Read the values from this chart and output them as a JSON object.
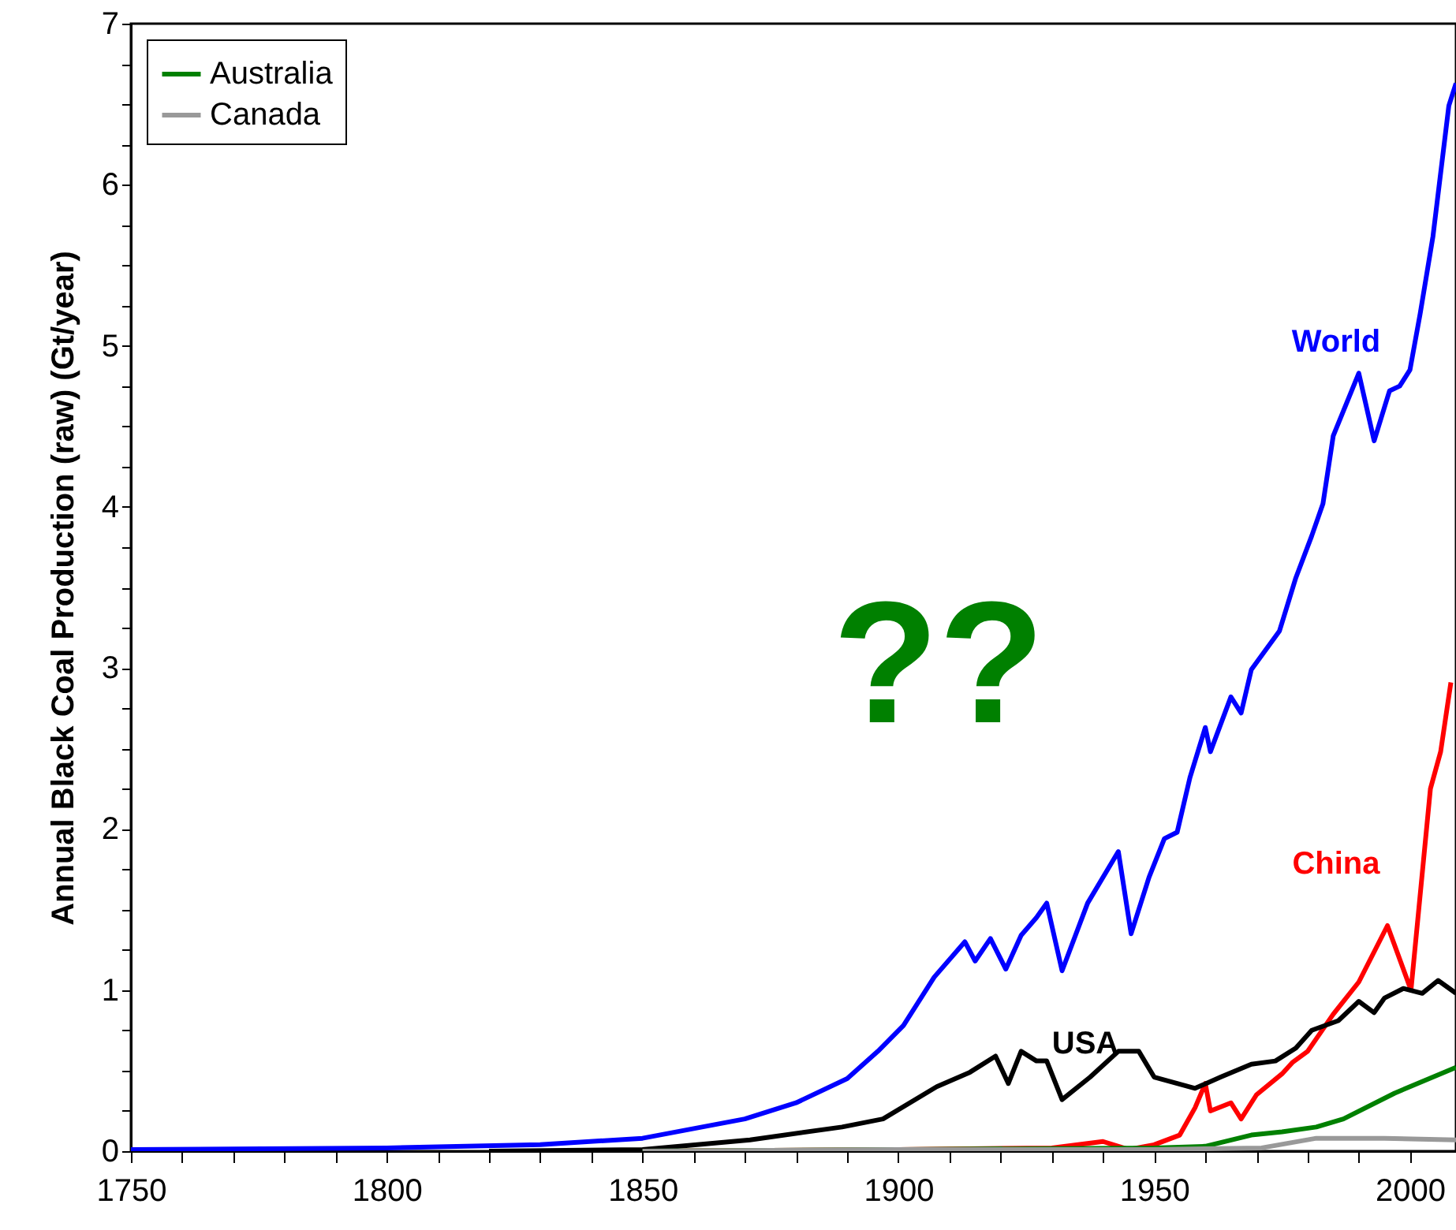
{
  "chart_data": {
    "type": "line",
    "ylabel": "Annual Black Coal Production (raw) (Gt/year)",
    "xlim": [
      1750,
      2009
    ],
    "ylim": [
      0,
      7
    ],
    "xticks": [
      1750,
      {
        "value": 1760,
        "label": null
      },
      {
        "value": 1770,
        "label": null
      },
      {
        "value": 1780,
        "label": null
      },
      {
        "value": 1790,
        "label": null
      },
      1800,
      {
        "value": 1810,
        "label": null
      },
      {
        "value": 1820,
        "label": null
      },
      {
        "value": 1830,
        "label": null
      },
      {
        "value": 1840,
        "label": null
      },
      1850,
      {
        "value": 1860,
        "label": null
      },
      {
        "value": 1870,
        "label": null
      },
      {
        "value": 1880,
        "label": null
      },
      {
        "value": 1890,
        "label": null
      },
      1900,
      {
        "value": 1910,
        "label": null
      },
      {
        "value": 1920,
        "label": null
      },
      {
        "value": 1930,
        "label": null
      },
      {
        "value": 1940,
        "label": null
      },
      1950,
      {
        "value": 1960,
        "label": null
      },
      {
        "value": 1970,
        "label": null
      },
      {
        "value": 1980,
        "label": null
      },
      {
        "value": 1990,
        "label": null
      },
      2000
    ],
    "yticks": [
      0,
      {
        "value": 0.25,
        "label": null
      },
      {
        "value": 0.5,
        "label": null
      },
      {
        "value": 0.75,
        "label": null
      },
      1,
      {
        "value": 1.25,
        "label": null
      },
      {
        "value": 1.5,
        "label": null
      },
      {
        "value": 1.75,
        "label": null
      },
      2,
      {
        "value": 2.25,
        "label": null
      },
      {
        "value": 2.5,
        "label": null
      },
      {
        "value": 2.75,
        "label": null
      },
      3,
      {
        "value": 3.25,
        "label": null
      },
      {
        "value": 3.5,
        "label": null
      },
      {
        "value": 3.75,
        "label": null
      },
      4,
      {
        "value": 4.25,
        "label": null
      },
      {
        "value": 4.5,
        "label": null
      },
      {
        "value": 4.75,
        "label": null
      },
      5,
      {
        "value": 5.25,
        "label": null
      },
      {
        "value": 5.5,
        "label": null
      },
      {
        "value": 5.75,
        "label": null
      },
      6,
      {
        "value": 6.25,
        "label": null
      },
      {
        "value": 6.5,
        "label": null
      },
      {
        "value": 6.75,
        "label": null
      },
      7
    ],
    "grid": false,
    "legend": "top left",
    "marker": "none",
    "line_style": "solid",
    "series": [
      {
        "name": "World",
        "color": "#0000ff",
        "x": [
          1750,
          1800,
          1830,
          1850,
          1870,
          1880,
          1890,
          1896,
          1901,
          1907,
          1913,
          1915,
          1918,
          1921,
          1924,
          1927,
          1929,
          1932,
          1937,
          1943,
          1945.5,
          1949,
          1952,
          1954.5,
          1957,
          1960,
          1961,
          1965,
          1967,
          1969,
          1974.5,
          1977.7,
          1980.8,
          1983,
          1985,
          1990,
          1993,
          1996,
          1998,
          2000,
          2002,
          2004.5,
          2007.6,
          2009
        ],
        "values": [
          0.01,
          0.02,
          0.04,
          0.08,
          0.2,
          0.3,
          0.45,
          0.62,
          0.78,
          1.08,
          1.3,
          1.18,
          1.32,
          1.13,
          1.34,
          1.45,
          1.54,
          1.12,
          1.54,
          1.86,
          1.35,
          1.7,
          1.94,
          1.98,
          2.32,
          2.63,
          2.48,
          2.82,
          2.72,
          2.99,
          3.23,
          3.56,
          3.82,
          4.02,
          4.44,
          4.83,
          4.41,
          4.72,
          4.75,
          4.85,
          5.2,
          5.68,
          6.49,
          6.63
        ]
      },
      {
        "name": "China",
        "color": "#ff0000",
        "x": [
          1850,
          1900,
          1930,
          1940,
          1945,
          1950,
          1955,
          1958,
          1960,
          1961,
          1965,
          1967,
          1970,
          1975,
          1977,
          1980,
          1985,
          1990,
          1995.6,
          2000.2,
          2004,
          2006,
          2008
        ],
        "values": [
          0,
          0.01,
          0.02,
          0.06,
          0.01,
          0.04,
          0.1,
          0.27,
          0.42,
          0.25,
          0.3,
          0.2,
          0.35,
          0.48,
          0.55,
          0.62,
          0.85,
          1.05,
          1.4,
          1.0,
          2.25,
          2.48,
          2.91
        ]
      },
      {
        "name": "USA",
        "color": "#000000",
        "x": [
          1820,
          1850,
          1871,
          1889,
          1897,
          1907.5,
          1914,
          1919,
          1921.5,
          1924,
          1927,
          1929,
          1932,
          1937.5,
          1943,
          1947,
          1950,
          1954.5,
          1958,
          1963,
          1969,
          1973.7,
          1977.7,
          1980.8,
          1986,
          1990,
          1993,
          1995,
          1998.7,
          2002.4,
          2005.5,
          2009
        ],
        "values": [
          0,
          0.01,
          0.07,
          0.15,
          0.2,
          0.4,
          0.49,
          0.59,
          0.42,
          0.62,
          0.56,
          0.56,
          0.32,
          0.46,
          0.62,
          0.62,
          0.46,
          0.42,
          0.39,
          0.46,
          0.54,
          0.56,
          0.64,
          0.75,
          0.81,
          0.93,
          0.86,
          0.95,
          1.01,
          0.98,
          1.06,
          0.98
        ]
      },
      {
        "name": "Australia",
        "color": "#008000",
        "x": [
          1850,
          1900,
          1950,
          1960,
          1969,
          1975,
          1981.7,
          1987,
          1997,
          2009
        ],
        "values": [
          0,
          0.01,
          0.02,
          0.03,
          0.1,
          0.12,
          0.15,
          0.2,
          0.36,
          0.52
        ]
      },
      {
        "name": "Canada",
        "color": "#999999",
        "x": [
          1850,
          1900,
          1950,
          1971,
          1981.7,
          1995,
          2009
        ],
        "values": [
          0,
          0.01,
          0.01,
          0.02,
          0.08,
          0.08,
          0.07
        ]
      }
    ],
    "annotations": [
      "??"
    ]
  }
}
